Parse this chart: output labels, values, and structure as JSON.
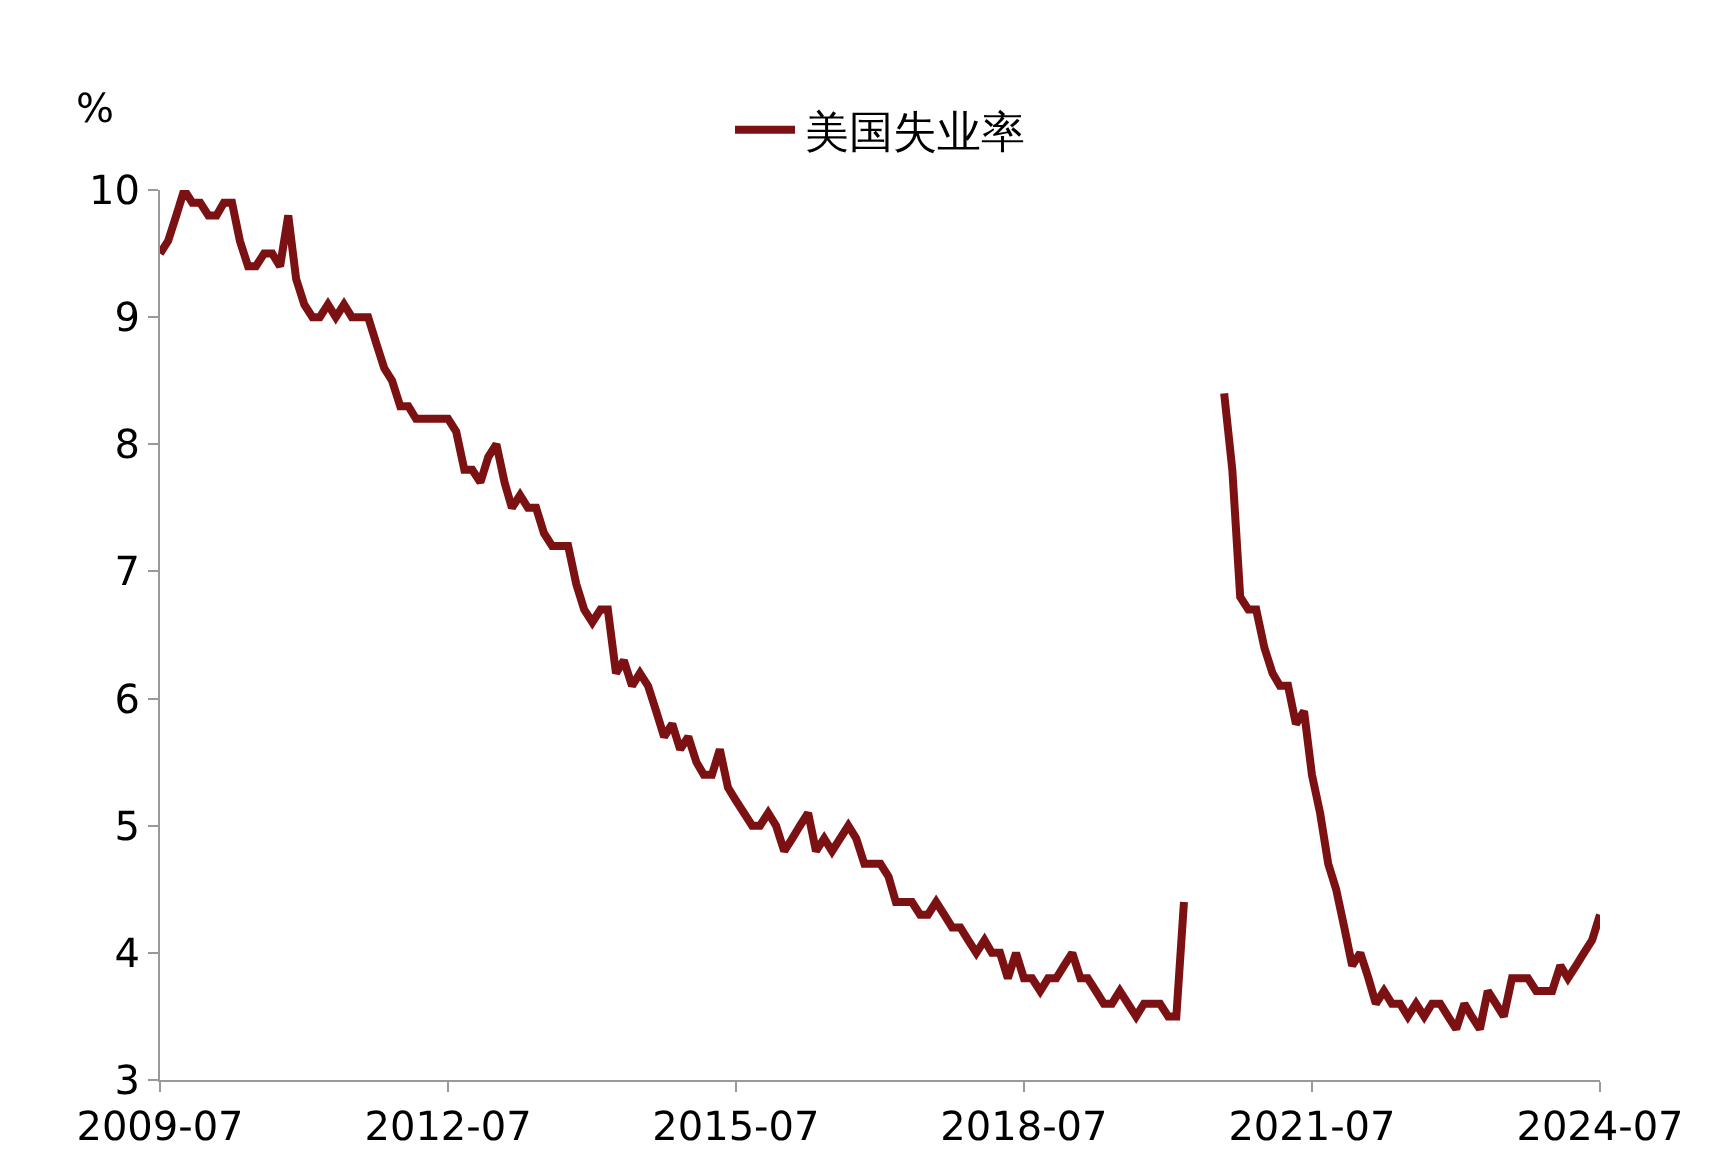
{
  "chart_data": {
    "type": "line",
    "ylabel": "%",
    "legend": "top",
    "marker": "none",
    "line_style": "solid",
    "x": [
      "2009-07",
      "2009-08",
      "2009-09",
      "2009-10",
      "2009-11",
      "2009-12",
      "2010-01",
      "2010-02",
      "2010-03",
      "2010-04",
      "2010-05",
      "2010-06",
      "2010-07",
      "2010-08",
      "2010-09",
      "2010-10",
      "2010-11",
      "2010-12",
      "2011-01",
      "2011-02",
      "2011-03",
      "2011-04",
      "2011-05",
      "2011-06",
      "2011-07",
      "2011-08",
      "2011-09",
      "2011-10",
      "2011-11",
      "2011-12",
      "2012-01",
      "2012-02",
      "2012-03",
      "2012-04",
      "2012-05",
      "2012-06",
      "2012-07",
      "2012-08",
      "2012-09",
      "2012-10",
      "2012-11",
      "2012-12",
      "2013-01",
      "2013-02",
      "2013-03",
      "2013-04",
      "2013-05",
      "2013-06",
      "2013-07",
      "2013-08",
      "2013-09",
      "2013-10",
      "2013-11",
      "2013-12",
      "2014-01",
      "2014-02",
      "2014-03",
      "2014-04",
      "2014-05",
      "2014-06",
      "2014-07",
      "2014-08",
      "2014-09",
      "2014-10",
      "2014-11",
      "2014-12",
      "2015-01",
      "2015-02",
      "2015-03",
      "2015-04",
      "2015-05",
      "2015-06",
      "2015-07",
      "2015-08",
      "2015-09",
      "2015-10",
      "2015-11",
      "2015-12",
      "2016-01",
      "2016-02",
      "2016-03",
      "2016-04",
      "2016-05",
      "2016-06",
      "2016-07",
      "2016-08",
      "2016-09",
      "2016-10",
      "2016-11",
      "2016-12",
      "2017-01",
      "2017-02",
      "2017-03",
      "2017-04",
      "2017-05",
      "2017-06",
      "2017-07",
      "2017-08",
      "2017-09",
      "2017-10",
      "2017-11",
      "2017-12",
      "2018-01",
      "2018-02",
      "2018-03",
      "2018-04",
      "2018-05",
      "2018-06",
      "2018-07",
      "2018-08",
      "2018-09",
      "2018-10",
      "2018-11",
      "2018-12",
      "2019-01",
      "2019-02",
      "2019-03",
      "2019-04",
      "2019-05",
      "2019-06",
      "2019-07",
      "2019-08",
      "2019-09",
      "2019-10",
      "2019-11",
      "2019-12",
      "2020-01",
      "2020-02",
      "2020-03",
      "2020-04",
      "2020-05",
      "2020-06",
      "2020-07",
      "2020-08",
      "2020-09",
      "2020-10",
      "2020-11",
      "2020-12",
      "2021-01",
      "2021-02",
      "2021-03",
      "2021-04",
      "2021-05",
      "2021-06",
      "2021-07",
      "2021-08",
      "2021-09",
      "2021-10",
      "2021-11",
      "2021-12",
      "2022-01",
      "2022-02",
      "2022-03",
      "2022-04",
      "2022-05",
      "2022-06",
      "2022-07",
      "2022-08",
      "2022-09",
      "2022-10",
      "2022-11",
      "2022-12",
      "2023-01",
      "2023-02",
      "2023-03",
      "2023-04",
      "2023-05",
      "2023-06",
      "2023-07",
      "2023-08",
      "2023-09",
      "2023-10",
      "2023-11",
      "2023-12",
      "2024-01",
      "2024-02",
      "2024-03",
      "2024-04",
      "2024-05",
      "2024-06",
      "2024-07"
    ],
    "series": [
      {
        "name": "美国失业率",
        "color": "#7b1113",
        "values": [
          9.5,
          9.6,
          9.8,
          10.0,
          9.9,
          9.9,
          9.8,
          9.8,
          9.9,
          9.9,
          9.6,
          9.4,
          9.4,
          9.5,
          9.5,
          9.4,
          9.8,
          9.3,
          9.1,
          9.0,
          9.0,
          9.1,
          9.0,
          9.1,
          9.0,
          9.0,
          9.0,
          8.8,
          8.6,
          8.5,
          8.3,
          8.3,
          8.2,
          8.2,
          8.2,
          8.2,
          8.2,
          8.1,
          7.8,
          7.8,
          7.7,
          7.9,
          8.0,
          7.7,
          7.5,
          7.6,
          7.5,
          7.5,
          7.3,
          7.2,
          7.2,
          7.2,
          6.9,
          6.7,
          6.6,
          6.7,
          6.7,
          6.2,
          6.3,
          6.1,
          6.2,
          6.1,
          5.9,
          5.7,
          5.8,
          5.6,
          5.7,
          5.5,
          5.4,
          5.4,
          5.6,
          5.3,
          5.2,
          5.1,
          5.0,
          5.0,
          5.1,
          5.0,
          4.8,
          4.9,
          5.0,
          5.1,
          4.8,
          4.9,
          4.8,
          4.9,
          5.0,
          4.9,
          4.7,
          4.7,
          4.7,
          4.6,
          4.4,
          4.4,
          4.4,
          4.3,
          4.3,
          4.4,
          4.3,
          4.2,
          4.2,
          4.1,
          4.0,
          4.1,
          4.0,
          4.0,
          3.8,
          4.0,
          3.8,
          3.8,
          3.7,
          3.8,
          3.8,
          3.9,
          4.0,
          3.8,
          3.8,
          3.7,
          3.6,
          3.6,
          3.7,
          3.6,
          3.5,
          3.6,
          3.6,
          3.6,
          3.5,
          3.5,
          4.4,
          null,
          null,
          null,
          null,
          8.4,
          7.8,
          6.8,
          6.7,
          6.7,
          6.4,
          6.2,
          6.1,
          6.1,
          5.8,
          5.9,
          5.4,
          5.1,
          4.7,
          4.5,
          4.2,
          3.9,
          4.0,
          3.8,
          3.6,
          3.7,
          3.6,
          3.6,
          3.5,
          3.6,
          3.5,
          3.6,
          3.6,
          3.5,
          3.4,
          3.6,
          3.5,
          3.4,
          3.7,
          3.6,
          3.5,
          3.8,
          3.8,
          3.8,
          3.7,
          3.7,
          3.7,
          3.9,
          3.8,
          3.9,
          4.0,
          4.1,
          4.3
        ]
      }
    ],
    "xlim": [
      "2009-07",
      "2024-07"
    ],
    "xticks": [
      "2009-07",
      "2012-07",
      "2015-07",
      "2018-07",
      "2021-07",
      "2024-07"
    ],
    "ylim": [
      3,
      10
    ],
    "yticks": [
      3,
      4,
      5,
      6,
      7,
      8,
      9,
      10
    ]
  }
}
